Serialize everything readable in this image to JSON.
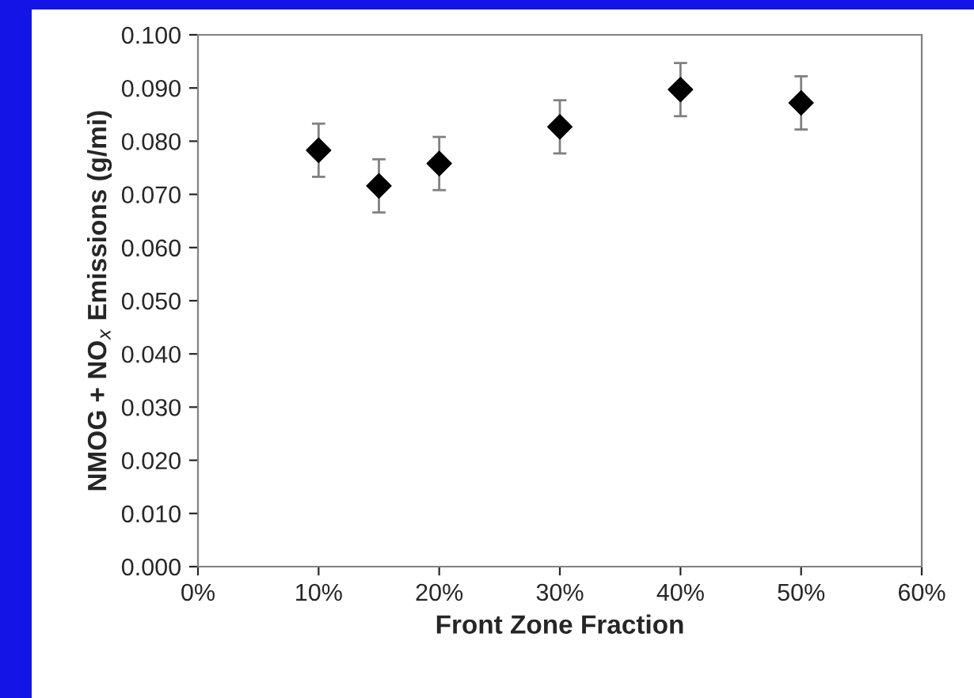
{
  "chart_data": {
    "type": "scatter",
    "xlabel": "Front Zone Fraction",
    "ylabel": "NMOG + NO$_{x}$ Emissions (g/mi)",
    "x": [
      10,
      15,
      20,
      30,
      40,
      50
    ],
    "values": [
      0.0783,
      0.0716,
      0.0758,
      0.0827,
      0.0897,
      0.0872
    ],
    "errors": [
      0.005,
      0.005,
      0.005,
      0.005,
      0.005,
      0.005
    ],
    "color": "#000000",
    "marker": "diamond",
    "xlim": [
      0,
      60
    ],
    "xticks": [
      {
        "value": 0,
        "label": "0%"
      },
      {
        "value": 10,
        "label": "10%"
      },
      {
        "value": 20,
        "label": "20%"
      },
      {
        "value": 30,
        "label": "30%"
      },
      {
        "value": 40,
        "label": "40%"
      },
      {
        "value": 50,
        "label": "50%"
      },
      {
        "value": 60,
        "label": "60%"
      }
    ],
    "ylim": [
      0,
      0.1
    ],
    "yticks": [
      {
        "value": 0,
        "label": "0.000"
      },
      {
        "value": 0.01,
        "label": "0.010"
      },
      {
        "value": 0.02,
        "label": "0.020"
      },
      {
        "value": 0.03,
        "label": "0.030"
      },
      {
        "value": 0.04,
        "label": "0.040"
      },
      {
        "value": 0.05,
        "label": "0.050"
      },
      {
        "value": 0.06,
        "label": "0.060"
      },
      {
        "value": 0.07,
        "label": "0.070"
      },
      {
        "value": 0.08,
        "label": "0.080"
      },
      {
        "value": 0.09,
        "label": "0.090"
      },
      {
        "value": 0.1,
        "label": "0.100"
      }
    ],
    "grid": false,
    "legend": false
  }
}
